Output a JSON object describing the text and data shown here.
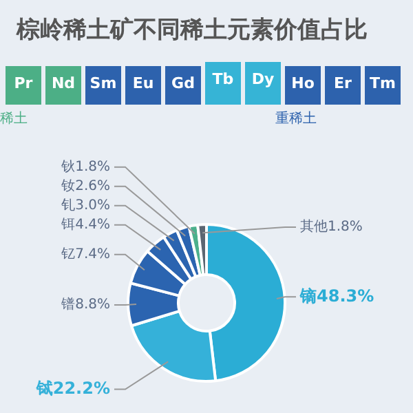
{
  "chart_data": {
    "type": "donut",
    "title": "棕岭稀土矿不同稀土元素价值占比",
    "categories": [
      "镝",
      "铽",
      "镨",
      "钇",
      "铒",
      "钆",
      "钕",
      "钬",
      "其他"
    ],
    "values": [
      48.3,
      22.2,
      8.8,
      7.4,
      4.4,
      3.0,
      2.6,
      1.8,
      1.8
    ],
    "colors": [
      "#2badd5",
      "#35b1d9",
      "#2b64b0",
      "#2b64b0",
      "#2b64b0",
      "#2b64b0",
      "#2b64b0",
      "#4cb08c",
      "#5b6672"
    ],
    "value_labels": [
      "48.3%",
      "22.2%",
      "8.8%",
      "7.4%",
      "4.4%",
      "3.0%",
      "2.6%",
      "1.8%",
      "1.8%"
    ],
    "annotations": [
      "Pr",
      "Nd",
      "Sm",
      "Eu",
      "Gd",
      "Tb",
      "Dy",
      "Ho",
      "Er",
      "Tm",
      "稀土",
      "重稀土"
    ]
  }
}
